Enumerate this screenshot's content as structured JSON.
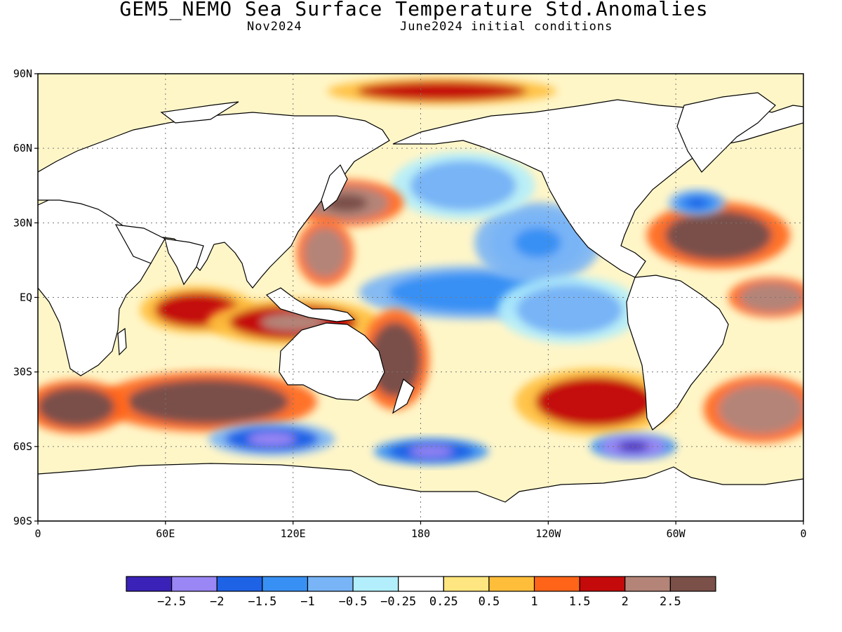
{
  "title": "GEM5_NEMO Sea Surface Temperature Std.Anomalies",
  "subtitle_month": "Nov2024",
  "subtitle_init": "June2024 initial conditions",
  "lat_ticks": [
    {
      "value": 90,
      "label": "90N"
    },
    {
      "value": 60,
      "label": "60N"
    },
    {
      "value": 30,
      "label": "30N"
    },
    {
      "value": 0,
      "label": "EQ"
    },
    {
      "value": -30,
      "label": "30S"
    },
    {
      "value": -60,
      "label": "60S"
    },
    {
      "value": -90,
      "label": "90S"
    }
  ],
  "lon_ticks": [
    {
      "value": 0,
      "label": "0"
    },
    {
      "value": 60,
      "label": "60E"
    },
    {
      "value": 120,
      "label": "120E"
    },
    {
      "value": 180,
      "label": "180"
    },
    {
      "value": 240,
      "label": "120W"
    },
    {
      "value": 300,
      "label": "60W"
    },
    {
      "value": 360,
      "label": "0"
    }
  ],
  "colorbar": {
    "colors": [
      "#3a22b8",
      "#9a86f4",
      "#1e62e6",
      "#3890f4",
      "#78b4f6",
      "#b2eefc",
      "#ffffff",
      "#ffe680",
      "#ffbe3a",
      "#ff6418",
      "#c40a0a",
      "#b48478",
      "#7a5048"
    ],
    "labels": [
      "-2.5",
      "-2",
      "-1.5",
      "-1",
      "-0.5",
      "-0.25",
      "0.25",
      "0.5",
      "1",
      "1.5",
      "2",
      "2.5"
    ]
  },
  "chart_data": {
    "type": "heatmap",
    "projection": "equirectangular",
    "lon_range": [
      0,
      360
    ],
    "lat_range": [
      -90,
      90
    ],
    "land_color": "#ffffff",
    "colorbar_levels": [
      -2.5,
      -2,
      -1.5,
      -1,
      -0.5,
      -0.25,
      0.25,
      0.5,
      1,
      1.5,
      2,
      2.5
    ],
    "anomaly_features": [
      {
        "lon": 205,
        "lat": 2,
        "rx": 40,
        "ry": 8,
        "value": -1.2
      },
      {
        "lon": 235,
        "lat": 22,
        "rx": 22,
        "ry": 12,
        "value": -1.0
      },
      {
        "lon": 200,
        "lat": 45,
        "rx": 25,
        "ry": 10,
        "value": -0.7
      },
      {
        "lon": 250,
        "lat": -5,
        "rx": 25,
        "ry": 10,
        "value": -0.6
      },
      {
        "lon": 145,
        "lat": 38,
        "rx": 20,
        "ry": 7,
        "value": 2.3
      },
      {
        "lon": 135,
        "lat": 18,
        "rx": 10,
        "ry": 10,
        "value": 2.0
      },
      {
        "lon": 75,
        "lat": -5,
        "rx": 20,
        "ry": 7,
        "value": 1.6
      },
      {
        "lon": 120,
        "lat": -10,
        "rx": 30,
        "ry": 7,
        "value": 1.8
      },
      {
        "lon": 168,
        "lat": -25,
        "rx": 12,
        "ry": 15,
        "value": 2.6
      },
      {
        "lon": 80,
        "lat": -42,
        "rx": 38,
        "ry": 9,
        "value": 2.6
      },
      {
        "lon": 18,
        "lat": -44,
        "rx": 18,
        "ry": 8,
        "value": 2.5
      },
      {
        "lon": 262,
        "lat": -42,
        "rx": 28,
        "ry": 10,
        "value": 1.6
      },
      {
        "lon": 320,
        "lat": 25,
        "rx": 25,
        "ry": 10,
        "value": 2.6
      },
      {
        "lon": 345,
        "lat": 0,
        "rx": 15,
        "ry": 6,
        "value": 2.0
      },
      {
        "lon": 310,
        "lat": 38,
        "rx": 10,
        "ry": 4,
        "value": -1.5
      },
      {
        "lon": 340,
        "lat": -45,
        "rx": 20,
        "ry": 10,
        "value": 2.0
      },
      {
        "lon": 110,
        "lat": -57,
        "rx": 22,
        "ry": 5,
        "value": -1.8
      },
      {
        "lon": 185,
        "lat": -62,
        "rx": 20,
        "ry": 4,
        "value": -2.0
      },
      {
        "lon": 280,
        "lat": -60,
        "rx": 15,
        "ry": 4,
        "value": -2.2
      },
      {
        "lon": 190,
        "lat": 83,
        "rx": 40,
        "ry": 4,
        "value": 1.5
      }
    ]
  }
}
